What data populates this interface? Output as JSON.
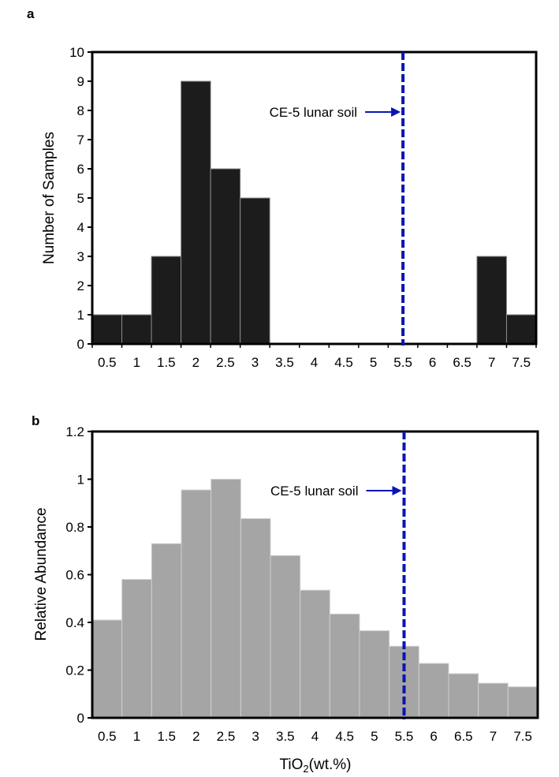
{
  "chart_data": [
    {
      "panel": "a",
      "type": "bar",
      "title": "",
      "xlabel": "",
      "ylabel": "Number of  Samples",
      "categories": [
        "0.5",
        "1",
        "1.5",
        "2",
        "2.5",
        "3",
        "3.5",
        "4",
        "4.5",
        "5",
        "5.5",
        "6",
        "6.5",
        "7",
        "7.5"
      ],
      "values": [
        1,
        1,
        3,
        9,
        6,
        5,
        0,
        0,
        0,
        0,
        0,
        0,
        0,
        3,
        1
      ],
      "ylim": [
        0,
        10
      ],
      "yticks": [
        "0",
        "1",
        "2",
        "3",
        "4",
        "5",
        "6",
        "7",
        "8",
        "9",
        "10"
      ],
      "grid": false,
      "bar_color": "#1c1c1c",
      "reference_line": {
        "x": 5.5,
        "color": "#0a14b4",
        "style": "dashed",
        "label": "CE-5 lunar soil"
      }
    },
    {
      "panel": "b",
      "type": "bar",
      "title": "",
      "xlabel": "TiO2(wt.%)",
      "ylabel": "Relative Abundance",
      "categories": [
        "0.5",
        "1",
        "1.5",
        "2",
        "2.5",
        "3",
        "3.5",
        "4",
        "4.5",
        "5",
        "5.5",
        "6",
        "6.5",
        "7",
        "7.5"
      ],
      "values": [
        0.41,
        0.58,
        0.73,
        0.955,
        1.0,
        0.835,
        0.68,
        0.535,
        0.435,
        0.365,
        0.3,
        0.228,
        0.185,
        0.145,
        0.13
      ],
      "ylim": [
        0,
        1.2
      ],
      "yticks": [
        "0",
        "0.2",
        "0.4",
        "0.6",
        "0.8",
        "1",
        "1.2"
      ],
      "grid": false,
      "bar_color": "#a5a5a5",
      "reference_line": {
        "x": 5.5,
        "color": "#0a14b4",
        "style": "dashed",
        "label": "CE-5 lunar soil"
      }
    }
  ],
  "panels": {
    "a": {
      "label": "a"
    },
    "b": {
      "label": "b"
    }
  },
  "xaxis_title": {
    "main": "TiO",
    "sub": "2",
    "rest": "(wt.%)"
  }
}
